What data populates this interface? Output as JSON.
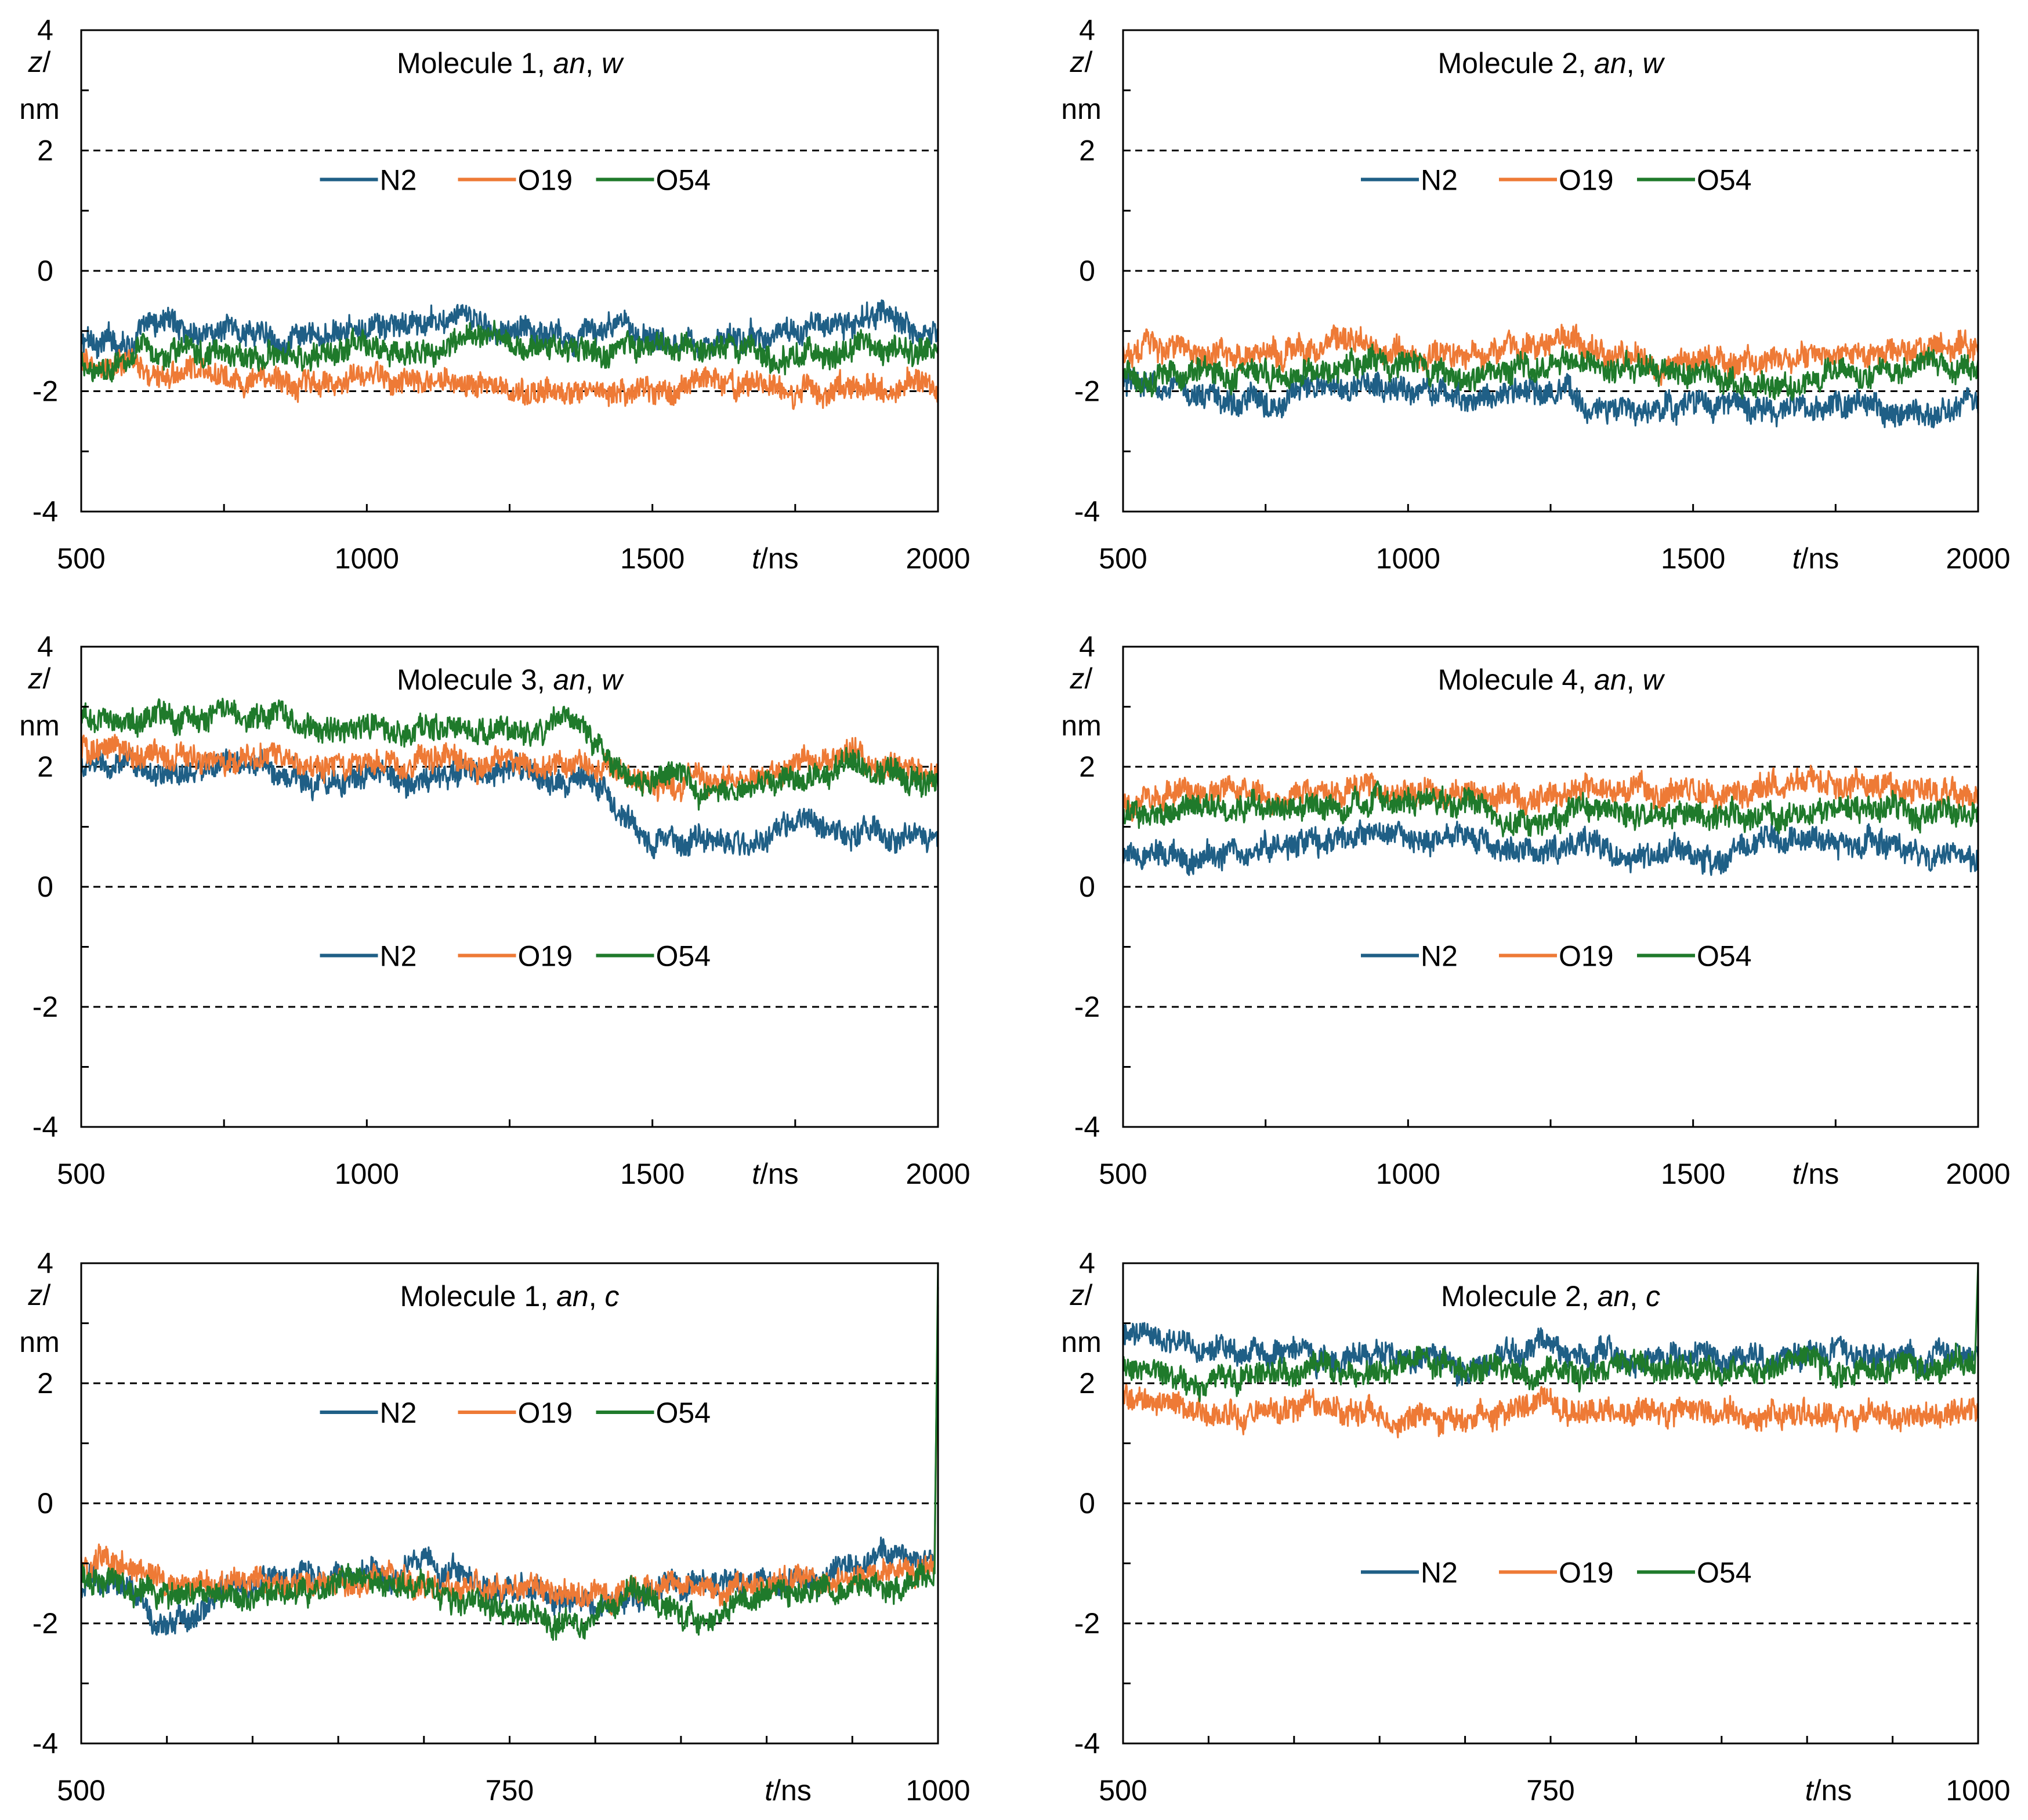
{
  "legend": {
    "entries": [
      {
        "name": "N2",
        "color": "#1f5f86"
      },
      {
        "name": "O19",
        "color": "#ee7a36"
      },
      {
        "name": "O54",
        "color": "#1f7a2b"
      }
    ]
  },
  "axes": {
    "y_label_top": "z/",
    "y_label_bottom": "nm",
    "x_label": "t/ns"
  },
  "chart_data": [
    {
      "type": "line",
      "title": {
        "prefix": "Molecule 1, ",
        "italic1": "an",
        "sep": ", ",
        "italic2": "w"
      },
      "xlim": [
        500,
        2000
      ],
      "ylim": [
        -4,
        4
      ],
      "xticks": [
        500,
        1000,
        1500,
        2000
      ],
      "yticks": [
        -4,
        -2,
        0,
        2,
        4
      ],
      "minor_xstep": 250,
      "minor_ystep": 1,
      "reference_lines": [
        -2,
        0,
        2
      ],
      "legend_position": "top-center",
      "series": [
        {
          "name": "N2",
          "color": "#1f5f86",
          "x": [
            500,
            600,
            650,
            700,
            800,
            900,
            1000,
            1100,
            1150,
            1200,
            1300,
            1400,
            1500,
            1600,
            1700,
            1800,
            1900,
            2000
          ],
          "y": [
            -1.2,
            -1.1,
            -0.8,
            -1.0,
            -1.0,
            -1.2,
            -1.0,
            -0.9,
            -0.8,
            -0.9,
            -1.0,
            -1.0,
            -1.0,
            -1.2,
            -1.1,
            -0.9,
            -0.8,
            -1.0
          ]
        },
        {
          "name": "O19",
          "color": "#ee7a36",
          "x": [
            500,
            600,
            650,
            700,
            800,
            900,
            1000,
            1100,
            1200,
            1300,
            1400,
            1500,
            1600,
            1700,
            1800,
            1900,
            2000
          ],
          "y": [
            -1.6,
            -1.6,
            -1.8,
            -1.7,
            -1.8,
            -1.9,
            -1.8,
            -1.9,
            -1.8,
            -2.1,
            -1.9,
            -1.9,
            -1.8,
            -2.0,
            -2.0,
            -1.9,
            -1.9
          ]
        },
        {
          "name": "O54",
          "color": "#1f7a2b",
          "x": [
            500,
            600,
            700,
            800,
            900,
            1000,
            1100,
            1200,
            1300,
            1400,
            1500,
            1600,
            1700,
            1800,
            1900,
            2000
          ],
          "y": [
            -1.6,
            -1.4,
            -1.3,
            -1.4,
            -1.5,
            -1.3,
            -1.3,
            -1.2,
            -1.3,
            -1.3,
            -1.2,
            -1.4,
            -1.5,
            -1.4,
            -1.3,
            -1.4
          ]
        }
      ]
    },
    {
      "type": "line",
      "title": {
        "prefix": "Molecule 2, ",
        "italic1": "an",
        "sep": ", ",
        "italic2": "w"
      },
      "xlim": [
        500,
        2000
      ],
      "ylim": [
        -4,
        4
      ],
      "xticks": [
        500,
        1000,
        1500,
        2000
      ],
      "yticks": [
        -4,
        -2,
        0,
        2,
        4
      ],
      "minor_xstep": 250,
      "minor_ystep": 1,
      "reference_lines": [
        -2,
        0,
        2
      ],
      "legend_position": "top-center",
      "series": [
        {
          "name": "N2",
          "color": "#1f5f86",
          "x": [
            500,
            600,
            700,
            800,
            900,
            1000,
            1100,
            1200,
            1300,
            1400,
            1500,
            1600,
            1700,
            1800,
            1900,
            2000
          ],
          "y": [
            -1.9,
            -2.0,
            -2.2,
            -2.0,
            -1.9,
            -2.0,
            -2.1,
            -2.0,
            -2.2,
            -2.4,
            -2.2,
            -2.3,
            -2.4,
            -2.2,
            -2.3,
            -2.2
          ]
        },
        {
          "name": "O19",
          "color": "#ee7a36",
          "x": [
            500,
            600,
            700,
            800,
            900,
            1000,
            1100,
            1200,
            1300,
            1400,
            1500,
            1600,
            1700,
            1800,
            1900,
            2000
          ],
          "y": [
            -1.3,
            -1.3,
            -1.4,
            -1.3,
            -1.2,
            -1.4,
            -1.4,
            -1.2,
            -1.2,
            -1.4,
            -1.5,
            -1.4,
            -1.5,
            -1.4,
            -1.3,
            -1.3
          ]
        },
        {
          "name": "O54",
          "color": "#1f7a2b",
          "x": [
            500,
            600,
            700,
            800,
            900,
            1000,
            1100,
            1200,
            1300,
            1400,
            1500,
            1600,
            1700,
            1800,
            1900,
            2000
          ],
          "y": [
            -1.7,
            -1.7,
            -1.8,
            -1.7,
            -1.5,
            -1.7,
            -1.8,
            -1.6,
            -1.5,
            -1.7,
            -1.7,
            -1.8,
            -1.8,
            -1.7,
            -1.6,
            -1.6
          ]
        }
      ]
    },
    {
      "type": "line",
      "title": {
        "prefix": "Molecule 3, ",
        "italic1": "an",
        "sep": ", ",
        "italic2": "w"
      },
      "xlim": [
        500,
        2000
      ],
      "ylim": [
        -4,
        4
      ],
      "xticks": [
        500,
        1000,
        1500,
        2000
      ],
      "yticks": [
        -4,
        -2,
        0,
        2,
        4
      ],
      "minor_xstep": 250,
      "minor_ystep": 1,
      "reference_lines": [
        -2,
        0,
        2
      ],
      "legend_position": "center",
      "series": [
        {
          "name": "N2",
          "color": "#1f5f86",
          "x": [
            500,
            600,
            700,
            800,
            900,
            1000,
            1100,
            1200,
            1300,
            1400,
            1450,
            1500,
            1600,
            1700,
            1750,
            1800,
            1900,
            2000
          ],
          "y": [
            2.0,
            1.9,
            1.9,
            2.0,
            1.8,
            1.9,
            1.8,
            1.9,
            1.8,
            1.8,
            1.1,
            0.8,
            0.7,
            0.8,
            1.1,
            1.0,
            0.8,
            0.9
          ]
        },
        {
          "name": "O19",
          "color": "#ee7a36",
          "x": [
            500,
            600,
            700,
            800,
            900,
            1000,
            1100,
            1200,
            1300,
            1400,
            1450,
            1500,
            1600,
            1700,
            1800,
            1850,
            1900,
            2000
          ],
          "y": [
            2.3,
            2.2,
            2.1,
            2.3,
            2.0,
            2.1,
            2.0,
            2.1,
            2.0,
            2.1,
            1.9,
            1.8,
            1.7,
            1.8,
            2.1,
            2.3,
            2.0,
            2.0
          ]
        },
        {
          "name": "O54",
          "color": "#1f7a2b",
          "x": [
            500,
            600,
            700,
            800,
            900,
            1000,
            1100,
            1200,
            1300,
            1350,
            1400,
            1450,
            1500,
            1600,
            1700,
            1800,
            1850,
            1900,
            2000
          ],
          "y": [
            2.8,
            2.8,
            2.9,
            2.9,
            2.6,
            2.6,
            2.6,
            2.6,
            2.6,
            2.9,
            2.5,
            2.0,
            1.8,
            1.7,
            1.7,
            1.8,
            2.1,
            1.8,
            1.8
          ]
        }
      ]
    },
    {
      "type": "line",
      "title": {
        "prefix": "Molecule 4, ",
        "italic1": "an",
        "sep": ", ",
        "italic2": "w"
      },
      "xlim": [
        500,
        2000
      ],
      "ylim": [
        -4,
        4
      ],
      "xticks": [
        500,
        1000,
        1500,
        2000
      ],
      "yticks": [
        -4,
        -2,
        0,
        2,
        4
      ],
      "minor_xstep": 250,
      "minor_ystep": 1,
      "reference_lines": [
        -2,
        0,
        2
      ],
      "legend_position": "center",
      "series": [
        {
          "name": "N2",
          "color": "#1f5f86",
          "x": [
            500,
            600,
            700,
            800,
            900,
            1000,
            1100,
            1200,
            1300,
            1400,
            1500,
            1550,
            1600,
            1700,
            1800,
            1900,
            2000
          ],
          "y": [
            0.4,
            0.5,
            0.6,
            0.7,
            0.8,
            0.8,
            0.8,
            0.6,
            0.7,
            0.6,
            0.6,
            0.3,
            0.7,
            0.8,
            0.8,
            0.6,
            0.5
          ]
        },
        {
          "name": "O19",
          "color": "#ee7a36",
          "x": [
            500,
            600,
            700,
            800,
            900,
            1000,
            1100,
            1200,
            1300,
            1400,
            1500,
            1600,
            1700,
            1800,
            1900,
            2000
          ],
          "y": [
            1.5,
            1.5,
            1.6,
            1.5,
            1.7,
            1.6,
            1.6,
            1.5,
            1.6,
            1.6,
            1.5,
            1.6,
            1.7,
            1.6,
            1.6,
            1.5
          ]
        },
        {
          "name": "O54",
          "color": "#1f7a2b",
          "x": [
            500,
            600,
            700,
            800,
            900,
            1000,
            1100,
            1200,
            1300,
            1400,
            1500,
            1600,
            1700,
            1800,
            1900,
            2000
          ],
          "y": [
            1.2,
            1.3,
            1.4,
            1.3,
            1.4,
            1.4,
            1.4,
            1.0,
            1.3,
            1.2,
            1.2,
            1.1,
            1.3,
            1.3,
            1.2,
            1.2
          ]
        }
      ]
    },
    {
      "type": "line",
      "title": {
        "prefix": "Molecule 1, ",
        "italic1": "an",
        "sep": ", ",
        "italic2": "c"
      },
      "xlim": [
        500,
        1000
      ],
      "ylim": [
        -4,
        4
      ],
      "xticks": [
        500,
        750,
        1000
      ],
      "yticks": [
        -4,
        -2,
        0,
        2,
        4
      ],
      "minor_xstep": 50,
      "minor_ystep": 1,
      "reference_lines": [
        -2,
        0,
        2
      ],
      "legend_position": "top-center",
      "series": [
        {
          "name": "N2",
          "color": "#1f5f86",
          "x": [
            500,
            520,
            550,
            580,
            600,
            650,
            700,
            750,
            800,
            850,
            900,
            950,
            980,
            998,
            1000
          ],
          "y": [
            -1.4,
            -1.2,
            -2.2,
            -1.5,
            -1.3,
            -1.2,
            -1.0,
            -1.4,
            -1.6,
            -1.3,
            -1.3,
            -1.1,
            -0.8,
            -1.0,
            3.6
          ]
        },
        {
          "name": "O19",
          "color": "#ee7a36",
          "x": [
            500,
            515,
            550,
            600,
            650,
            700,
            750,
            790,
            820,
            850,
            900,
            950,
            998,
            1000
          ],
          "y": [
            -1.1,
            -0.8,
            -1.4,
            -1.3,
            -1.3,
            -1.3,
            -1.4,
            -1.6,
            -1.4,
            -1.5,
            -1.3,
            -1.2,
            -1.1,
            3.3
          ]
        },
        {
          "name": "O54",
          "color": "#1f7a2b",
          "x": [
            500,
            550,
            600,
            650,
            700,
            750,
            790,
            820,
            850,
            900,
            950,
            998,
            1000
          ],
          "y": [
            -1.2,
            -1.5,
            -1.5,
            -1.4,
            -1.4,
            -1.8,
            -2.1,
            -1.5,
            -2.0,
            -1.6,
            -1.4,
            -1.3,
            4.0
          ]
        }
      ]
    },
    {
      "type": "line",
      "title": {
        "prefix": "Molecule 2, ",
        "italic1": "an",
        "sep": ", ",
        "italic2": "c"
      },
      "xlim": [
        500,
        1000
      ],
      "ylim": [
        -4,
        4
      ],
      "xticks": [
        500,
        750,
        1000
      ],
      "yticks": [
        -4,
        -2,
        0,
        2,
        4
      ],
      "minor_xstep": 50,
      "minor_ystep": 1,
      "reference_lines": [
        -2,
        0,
        2
      ],
      "legend_position": "center",
      "series": [
        {
          "name": "N2",
          "color": "#1f5f86",
          "x": [
            500,
            550,
            600,
            650,
            700,
            750,
            800,
            850,
            900,
            950,
            1000
          ],
          "y": [
            2.8,
            2.5,
            2.5,
            2.5,
            2.3,
            2.6,
            2.4,
            2.4,
            2.5,
            2.4,
            2.5
          ]
        },
        {
          "name": "O19",
          "color": "#ee7a36",
          "x": [
            500,
            550,
            600,
            650,
            700,
            750,
            800,
            850,
            900,
            950,
            1000
          ],
          "y": [
            1.7,
            1.5,
            1.6,
            1.4,
            1.4,
            1.6,
            1.5,
            1.5,
            1.4,
            1.5,
            1.6
          ]
        },
        {
          "name": "O54",
          "color": "#1f7a2b",
          "x": [
            500,
            550,
            600,
            650,
            700,
            750,
            800,
            850,
            900,
            950,
            998,
            1000
          ],
          "y": [
            2.3,
            2.0,
            2.2,
            2.2,
            2.2,
            2.3,
            2.3,
            2.2,
            2.3,
            2.3,
            2.3,
            4.0
          ]
        }
      ]
    }
  ]
}
